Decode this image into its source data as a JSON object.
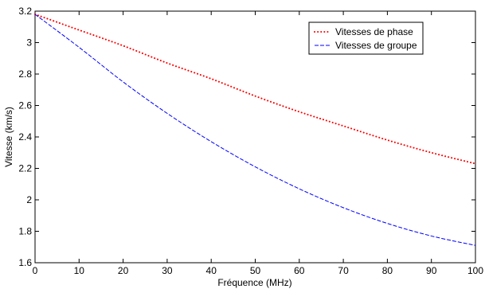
{
  "chart_data": {
    "type": "line",
    "title": "",
    "xlabel": "Fréquence (MHz)",
    "ylabel": "Vitesse (km/s)",
    "xlim": [
      0,
      100
    ],
    "ylim": [
      1.6,
      3.2
    ],
    "xticks": [
      0,
      10,
      20,
      30,
      40,
      50,
      60,
      70,
      80,
      90,
      100
    ],
    "yticks": [
      1.6,
      1.8,
      2,
      2.2,
      2.4,
      2.6,
      2.8,
      3,
      3.2
    ],
    "xtick_labels": [
      "0",
      "10",
      "20",
      "30",
      "40",
      "50",
      "60",
      "70",
      "80",
      "90",
      "100"
    ],
    "ytick_labels": [
      "1.6",
      "1.8",
      "2",
      "2.2",
      "2.4",
      "2.6",
      "2.8",
      "3",
      "3.2"
    ],
    "grid": false,
    "legend_position": "top-right",
    "x": [
      0,
      10,
      20,
      30,
      40,
      50,
      60,
      70,
      80,
      90,
      100
    ],
    "series": [
      {
        "name": "Vitesses de phase",
        "style": "dotted",
        "color": "#ff0000",
        "values": [
          3.18,
          3.08,
          2.98,
          2.87,
          2.77,
          2.66,
          2.56,
          2.47,
          2.38,
          2.3,
          2.23
        ]
      },
      {
        "name": "Vitesses de groupe",
        "style": "dashed",
        "color": "#0000ff",
        "values": [
          3.18,
          2.97,
          2.75,
          2.55,
          2.37,
          2.21,
          2.07,
          1.95,
          1.85,
          1.77,
          1.71
        ]
      }
    ]
  }
}
